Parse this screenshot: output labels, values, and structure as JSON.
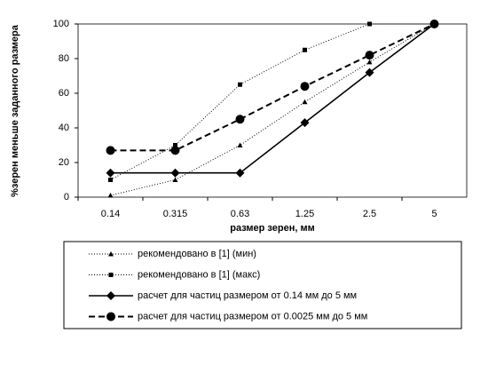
{
  "chart_data": {
    "type": "line",
    "x_label": "размер зерен, мм",
    "y_label": "%зерен меньше заданного размера",
    "categories": [
      "0.14",
      "0.315",
      "0.63",
      "1.25",
      "2.5",
      "5"
    ],
    "ylim": [
      0,
      100
    ],
    "yticks": [
      0,
      20,
      40,
      60,
      80,
      100
    ],
    "grid": false,
    "series": [
      {
        "name": "рекомендовано в  [1]  (мин)",
        "color": "#000000",
        "marker": "triangle",
        "line_style": "dotted",
        "values": [
          1,
          10,
          30,
          55,
          78,
          100
        ]
      },
      {
        "name": "рекомендовано в  [1]  (макс)",
        "color": "#000000",
        "marker": "square",
        "line_style": "dotted",
        "values": [
          10,
          30,
          65,
          85,
          100,
          100
        ]
      },
      {
        "name": "расчет для частиц размером от 0.14 мм до 5 мм",
        "color": "#000000",
        "marker": "diamond",
        "line_style": "solid",
        "values": [
          14,
          14,
          14,
          43,
          72,
          100
        ]
      },
      {
        "name": "расчет для частиц размером от 0.0025 мм до 5 мм",
        "color": "#000000",
        "marker": "circle",
        "line_style": "dashed",
        "values": [
          27,
          27,
          45,
          64,
          82,
          100
        ]
      }
    ]
  }
}
